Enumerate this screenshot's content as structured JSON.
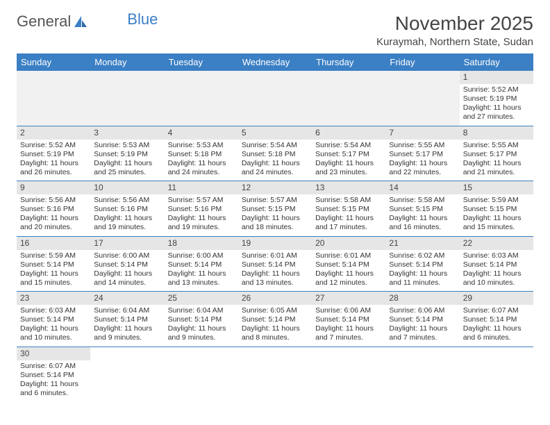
{
  "logo": {
    "text1": "General",
    "text2": "Blue"
  },
  "title": "November 2025",
  "location": "Kuraymah, Northern State, Sudan",
  "colors": {
    "header_bg": "#3b7fc4",
    "header_text": "#ffffff",
    "daynum_bg": "#e6e6e6",
    "border": "#3b7fc4",
    "empty_bg": "#f1f1f1",
    "text": "#333333",
    "background": "#ffffff"
  },
  "day_names": [
    "Sunday",
    "Monday",
    "Tuesday",
    "Wednesday",
    "Thursday",
    "Friday",
    "Saturday"
  ],
  "weeks": [
    [
      {
        "empty": true
      },
      {
        "empty": true
      },
      {
        "empty": true
      },
      {
        "empty": true
      },
      {
        "empty": true
      },
      {
        "empty": true
      },
      {
        "day": "1",
        "sunrise": "Sunrise: 5:52 AM",
        "sunset": "Sunset: 5:19 PM",
        "daylight": "Daylight: 11 hours and 27 minutes."
      }
    ],
    [
      {
        "day": "2",
        "sunrise": "Sunrise: 5:52 AM",
        "sunset": "Sunset: 5:19 PM",
        "daylight": "Daylight: 11 hours and 26 minutes."
      },
      {
        "day": "3",
        "sunrise": "Sunrise: 5:53 AM",
        "sunset": "Sunset: 5:19 PM",
        "daylight": "Daylight: 11 hours and 25 minutes."
      },
      {
        "day": "4",
        "sunrise": "Sunrise: 5:53 AM",
        "sunset": "Sunset: 5:18 PM",
        "daylight": "Daylight: 11 hours and 24 minutes."
      },
      {
        "day": "5",
        "sunrise": "Sunrise: 5:54 AM",
        "sunset": "Sunset: 5:18 PM",
        "daylight": "Daylight: 11 hours and 24 minutes."
      },
      {
        "day": "6",
        "sunrise": "Sunrise: 5:54 AM",
        "sunset": "Sunset: 5:17 PM",
        "daylight": "Daylight: 11 hours and 23 minutes."
      },
      {
        "day": "7",
        "sunrise": "Sunrise: 5:55 AM",
        "sunset": "Sunset: 5:17 PM",
        "daylight": "Daylight: 11 hours and 22 minutes."
      },
      {
        "day": "8",
        "sunrise": "Sunrise: 5:55 AM",
        "sunset": "Sunset: 5:17 PM",
        "daylight": "Daylight: 11 hours and 21 minutes."
      }
    ],
    [
      {
        "day": "9",
        "sunrise": "Sunrise: 5:56 AM",
        "sunset": "Sunset: 5:16 PM",
        "daylight": "Daylight: 11 hours and 20 minutes."
      },
      {
        "day": "10",
        "sunrise": "Sunrise: 5:56 AM",
        "sunset": "Sunset: 5:16 PM",
        "daylight": "Daylight: 11 hours and 19 minutes."
      },
      {
        "day": "11",
        "sunrise": "Sunrise: 5:57 AM",
        "sunset": "Sunset: 5:16 PM",
        "daylight": "Daylight: 11 hours and 19 minutes."
      },
      {
        "day": "12",
        "sunrise": "Sunrise: 5:57 AM",
        "sunset": "Sunset: 5:15 PM",
        "daylight": "Daylight: 11 hours and 18 minutes."
      },
      {
        "day": "13",
        "sunrise": "Sunrise: 5:58 AM",
        "sunset": "Sunset: 5:15 PM",
        "daylight": "Daylight: 11 hours and 17 minutes."
      },
      {
        "day": "14",
        "sunrise": "Sunrise: 5:58 AM",
        "sunset": "Sunset: 5:15 PM",
        "daylight": "Daylight: 11 hours and 16 minutes."
      },
      {
        "day": "15",
        "sunrise": "Sunrise: 5:59 AM",
        "sunset": "Sunset: 5:15 PM",
        "daylight": "Daylight: 11 hours and 15 minutes."
      }
    ],
    [
      {
        "day": "16",
        "sunrise": "Sunrise: 5:59 AM",
        "sunset": "Sunset: 5:14 PM",
        "daylight": "Daylight: 11 hours and 15 minutes."
      },
      {
        "day": "17",
        "sunrise": "Sunrise: 6:00 AM",
        "sunset": "Sunset: 5:14 PM",
        "daylight": "Daylight: 11 hours and 14 minutes."
      },
      {
        "day": "18",
        "sunrise": "Sunrise: 6:00 AM",
        "sunset": "Sunset: 5:14 PM",
        "daylight": "Daylight: 11 hours and 13 minutes."
      },
      {
        "day": "19",
        "sunrise": "Sunrise: 6:01 AM",
        "sunset": "Sunset: 5:14 PM",
        "daylight": "Daylight: 11 hours and 13 minutes."
      },
      {
        "day": "20",
        "sunrise": "Sunrise: 6:01 AM",
        "sunset": "Sunset: 5:14 PM",
        "daylight": "Daylight: 11 hours and 12 minutes."
      },
      {
        "day": "21",
        "sunrise": "Sunrise: 6:02 AM",
        "sunset": "Sunset: 5:14 PM",
        "daylight": "Daylight: 11 hours and 11 minutes."
      },
      {
        "day": "22",
        "sunrise": "Sunrise: 6:03 AM",
        "sunset": "Sunset: 5:14 PM",
        "daylight": "Daylight: 11 hours and 10 minutes."
      }
    ],
    [
      {
        "day": "23",
        "sunrise": "Sunrise: 6:03 AM",
        "sunset": "Sunset: 5:14 PM",
        "daylight": "Daylight: 11 hours and 10 minutes."
      },
      {
        "day": "24",
        "sunrise": "Sunrise: 6:04 AM",
        "sunset": "Sunset: 5:14 PM",
        "daylight": "Daylight: 11 hours and 9 minutes."
      },
      {
        "day": "25",
        "sunrise": "Sunrise: 6:04 AM",
        "sunset": "Sunset: 5:14 PM",
        "daylight": "Daylight: 11 hours and 9 minutes."
      },
      {
        "day": "26",
        "sunrise": "Sunrise: 6:05 AM",
        "sunset": "Sunset: 5:14 PM",
        "daylight": "Daylight: 11 hours and 8 minutes."
      },
      {
        "day": "27",
        "sunrise": "Sunrise: 6:06 AM",
        "sunset": "Sunset: 5:14 PM",
        "daylight": "Daylight: 11 hours and 7 minutes."
      },
      {
        "day": "28",
        "sunrise": "Sunrise: 6:06 AM",
        "sunset": "Sunset: 5:14 PM",
        "daylight": "Daylight: 11 hours and 7 minutes."
      },
      {
        "day": "29",
        "sunrise": "Sunrise: 6:07 AM",
        "sunset": "Sunset: 5:14 PM",
        "daylight": "Daylight: 11 hours and 6 minutes."
      }
    ],
    [
      {
        "day": "30",
        "sunrise": "Sunrise: 6:07 AM",
        "sunset": "Sunset: 5:14 PM",
        "daylight": "Daylight: 11 hours and 6 minutes."
      },
      {
        "empty": true
      },
      {
        "empty": true
      },
      {
        "empty": true
      },
      {
        "empty": true
      },
      {
        "empty": true
      },
      {
        "empty": true
      }
    ]
  ]
}
